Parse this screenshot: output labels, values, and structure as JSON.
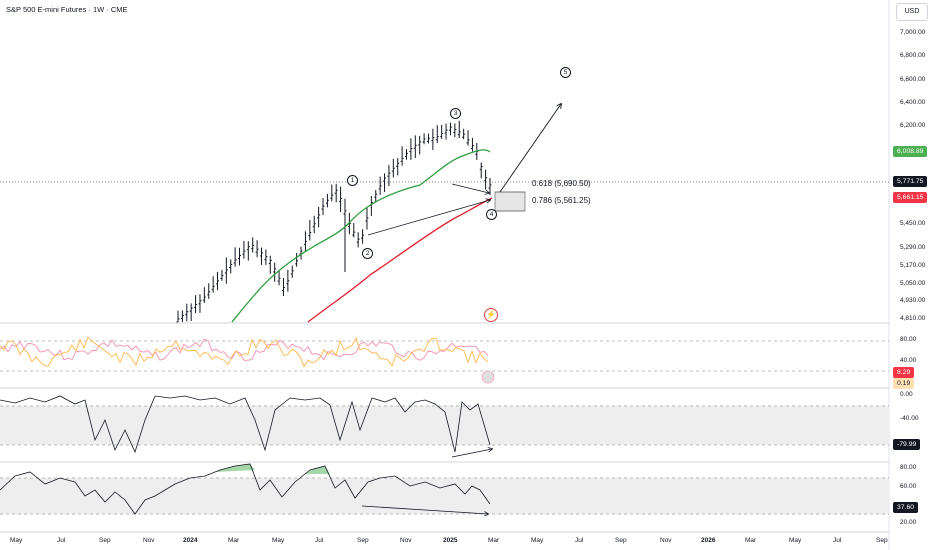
{
  "header": {
    "symbol_title": "S&P 500 E-mini Futures · 1W · CME",
    "currency_button": "USD"
  },
  "price_axis": {
    "labels": [
      "7,000.00",
      "6,800.00",
      "6,600.00",
      "6,400.00",
      "6,200.00",
      "5,450.00",
      "5,290.00",
      "5,170.00",
      "5,050.00",
      "4,930.00",
      "4,810.00"
    ],
    "tags": [
      {
        "text": "6,008.89",
        "color": "#4caf50"
      },
      {
        "text": "5,771.75",
        "color": "#131722"
      },
      {
        "text": "5,661.15",
        "color": "#f23645"
      }
    ]
  },
  "fib_levels": [
    {
      "label": "0.618 (5,690.50)"
    },
    {
      "label": "0.786 (5,561.25)"
    }
  ],
  "wave_labels": [
    "1",
    "2",
    "3",
    "4",
    "5"
  ],
  "indicator1": {
    "axis_labels": [
      "80.00",
      "40.00"
    ],
    "tags": [
      {
        "text": "8.29",
        "color": "#f23645",
        "fg": "#ffffff"
      },
      {
        "text": "0.19",
        "color": "#ffe0b2",
        "fg": "#131722"
      }
    ]
  },
  "indicator2": {
    "axis_labels": [
      "0.00",
      "-40.00"
    ],
    "tags": [
      {
        "text": "-79.99",
        "color": "#131722",
        "fg": "#ffffff"
      }
    ]
  },
  "indicator3": {
    "axis_labels": [
      "80.00",
      "60.00",
      "20.00"
    ],
    "tags": [
      {
        "text": "37.60",
        "color": "#131722",
        "fg": "#ffffff"
      }
    ]
  },
  "time_axis": {
    "labels": [
      "May",
      "Jul",
      "Sep",
      "Nov",
      "2024",
      "Mar",
      "May",
      "Jul",
      "Sep",
      "Nov",
      "2025",
      "Mar",
      "May",
      "Jul",
      "Sep",
      "Nov",
      "2026",
      "Mar",
      "May",
      "Jul",
      "Sep"
    ]
  },
  "colors": {
    "ma_fast": "#2e9e3e",
    "ma_slow": "#e0202e",
    "bars": "#131722"
  },
  "icons": {
    "alert": "lightning-icon"
  }
}
